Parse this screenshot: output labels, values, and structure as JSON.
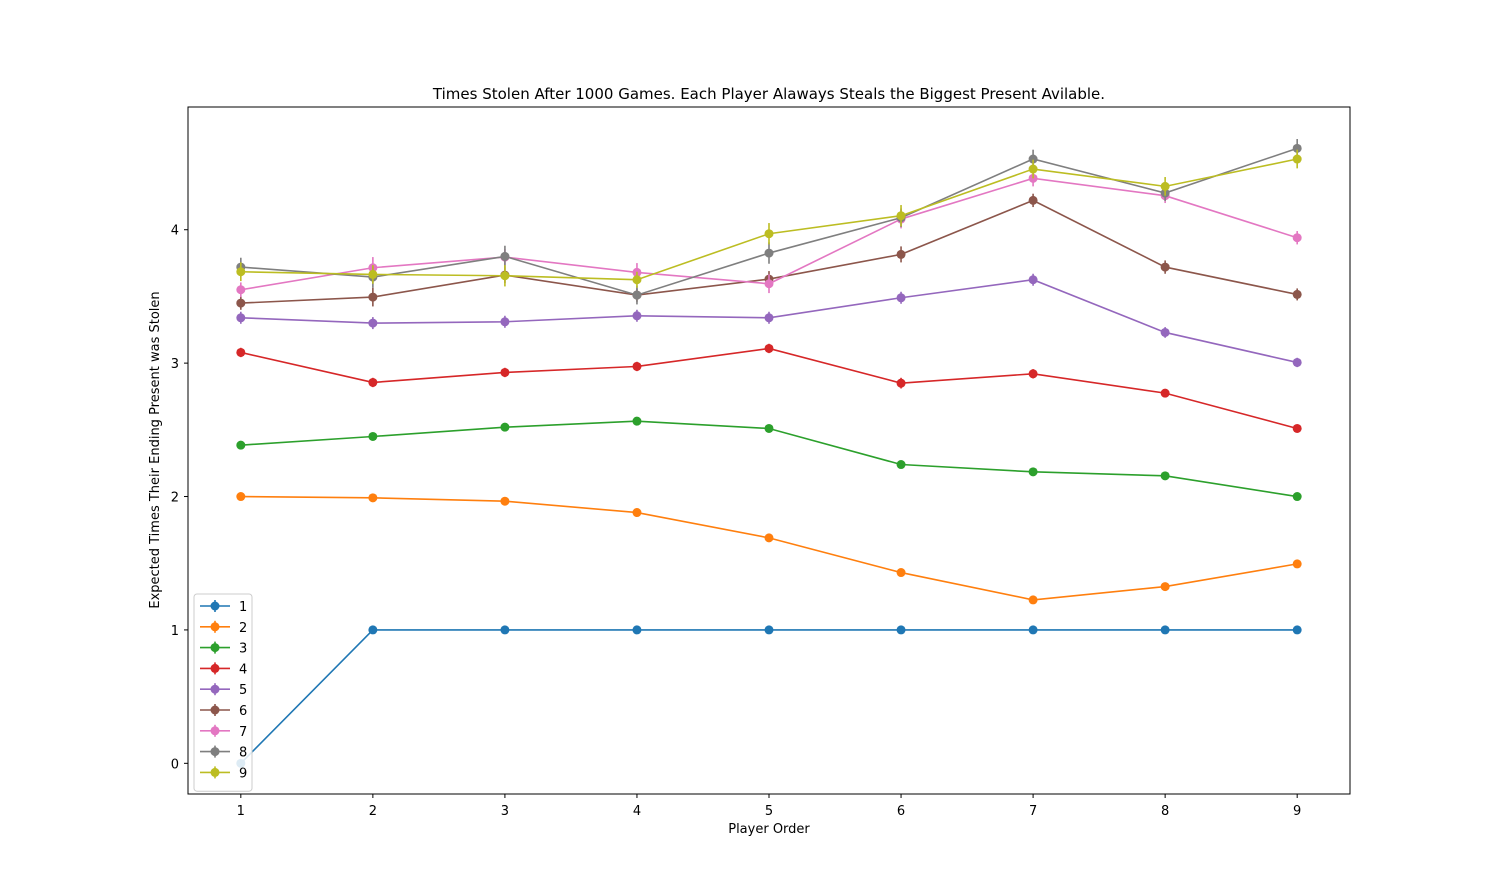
{
  "chart_data": {
    "type": "line",
    "title": "Times Stolen After 1000 Games. Each Player Alaways Steals the Biggest Present Avilable.",
    "xlabel": "Player Order",
    "ylabel": "Expected Times Their Ending Present was Stolen",
    "x": [
      1,
      2,
      3,
      4,
      5,
      6,
      7,
      8,
      9
    ],
    "xticks": [
      "1",
      "2",
      "3",
      "4",
      "5",
      "6",
      "7",
      "8",
      "9"
    ],
    "yticks": [
      "0",
      "1",
      "2",
      "3",
      "4"
    ],
    "xlim": [
      0.6,
      9.4
    ],
    "ylim": [
      -0.23,
      4.92
    ],
    "grid": false,
    "legend_position": "lower-left",
    "series": [
      {
        "name": "1",
        "color": "#1f77b4",
        "values": [
          0,
          1,
          1,
          1,
          1,
          1,
          1,
          1,
          1
        ],
        "err": [
          0,
          0,
          0,
          0,
          0,
          0,
          0,
          0,
          0
        ]
      },
      {
        "name": "2",
        "color": "#ff7f0e",
        "values": [
          2.0,
          1.99,
          1.965,
          1.88,
          1.69,
          1.43,
          1.225,
          1.325,
          1.495
        ],
        "err": [
          0.01,
          0.01,
          0.01,
          0.01,
          0.015,
          0.015,
          0.015,
          0.015,
          0.015
        ]
      },
      {
        "name": "3",
        "color": "#2ca02c",
        "values": [
          2.385,
          2.45,
          2.52,
          2.565,
          2.51,
          2.24,
          2.185,
          2.155,
          2.0
        ],
        "err": [
          0.02,
          0.02,
          0.02,
          0.02,
          0.02,
          0.025,
          0.02,
          0.02,
          0.02
        ]
      },
      {
        "name": "4",
        "color": "#d62728",
        "values": [
          3.08,
          2.855,
          2.93,
          2.975,
          3.11,
          2.85,
          2.92,
          2.775,
          2.51
        ],
        "err": [
          0.035,
          0.035,
          0.035,
          0.035,
          0.035,
          0.04,
          0.035,
          0.03,
          0.025
        ]
      },
      {
        "name": "5",
        "color": "#9467bd",
        "values": [
          3.34,
          3.3,
          3.31,
          3.355,
          3.34,
          3.49,
          3.625,
          3.23,
          3.005
        ],
        "err": [
          0.045,
          0.045,
          0.045,
          0.045,
          0.045,
          0.045,
          0.045,
          0.04,
          0.035
        ]
      },
      {
        "name": "6",
        "color": "#8c564b",
        "values": [
          3.45,
          3.495,
          3.66,
          3.51,
          3.63,
          3.815,
          4.22,
          3.72,
          3.515
        ],
        "err": [
          0.05,
          0.07,
          0.06,
          0.05,
          0.06,
          0.06,
          0.05,
          0.05,
          0.045
        ]
      },
      {
        "name": "7",
        "color": "#e377c2",
        "values": [
          3.55,
          3.715,
          3.795,
          3.68,
          3.595,
          4.08,
          4.385,
          4.255,
          3.94
        ],
        "err": [
          0.055,
          0.08,
          0.06,
          0.07,
          0.07,
          0.07,
          0.06,
          0.055,
          0.05
        ]
      },
      {
        "name": "8",
        "color": "#7f7f7f",
        "values": [
          3.72,
          3.645,
          3.8,
          3.51,
          3.825,
          4.09,
          4.53,
          4.275,
          4.61
        ],
        "err": [
          0.07,
          0.08,
          0.08,
          0.07,
          0.08,
          0.07,
          0.07,
          0.06,
          0.07
        ]
      },
      {
        "name": "9",
        "color": "#bcbd22",
        "values": [
          3.685,
          3.665,
          3.655,
          3.625,
          3.97,
          4.105,
          4.455,
          4.325,
          4.53
        ],
        "err": [
          0.07,
          0.07,
          0.08,
          0.06,
          0.08,
          0.08,
          0.07,
          0.07,
          0.07
        ]
      }
    ]
  }
}
